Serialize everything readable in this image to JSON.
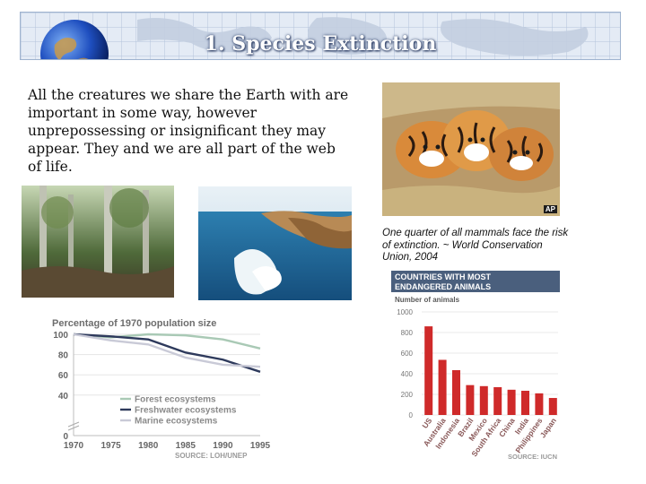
{
  "header": {
    "title": "1. Species Extinction"
  },
  "intro": {
    "text": "All the creatures we share the Earth with are important in some way, however unprepossessing or insignificant they may appear. They and we are all part of the web of life."
  },
  "photos": {
    "forest_alt": "forest photo",
    "coast_alt": "coast photo",
    "tigers_alt": "tiger cubs photo",
    "tigers_credit": "AP"
  },
  "caption": {
    "text": "One quarter of all mammals face the risk of extinction. ~ World Conservation Union, 2004"
  },
  "chart_data": [
    {
      "type": "line",
      "title": "Percentage of 1970 population size",
      "x": [
        1970,
        1975,
        1980,
        1985,
        1990,
        1995
      ],
      "xlim": [
        1970,
        1995
      ],
      "ylim": [
        0,
        100
      ],
      "yticks": [
        0,
        40,
        60,
        80,
        100
      ],
      "series": [
        {
          "name": "Forest ecosystems",
          "color": "#a9c9b5",
          "values": [
            100,
            97,
            100,
            99,
            95,
            86
          ]
        },
        {
          "name": "Freshwater ecosystems",
          "color": "#2e3a5c",
          "values": [
            100,
            98,
            95,
            82,
            75,
            63
          ]
        },
        {
          "name": "Marine ecosystems",
          "color": "#c9cad7",
          "values": [
            100,
            94,
            90,
            77,
            70,
            68
          ]
        }
      ],
      "legend": "bottom-left",
      "source": "SOURCE: LOH/UNEP"
    },
    {
      "type": "bar",
      "title": "COUNTRIES WITH MOST ENDANGERED ANIMALS",
      "ylabel": "Number of animals",
      "ylim": [
        0,
        1000
      ],
      "yticks": [
        0,
        200,
        400,
        600,
        800,
        1000
      ],
      "categories": [
        "US",
        "Australia",
        "Indonesia",
        "Brazil",
        "Mexico",
        "South Africa",
        "China",
        "India",
        "Philippines",
        "Japan"
      ],
      "values": [
        860,
        535,
        435,
        290,
        280,
        270,
        245,
        235,
        210,
        165
      ],
      "color": "#cf2a2a",
      "source": "SOURCE: IUCN"
    }
  ]
}
